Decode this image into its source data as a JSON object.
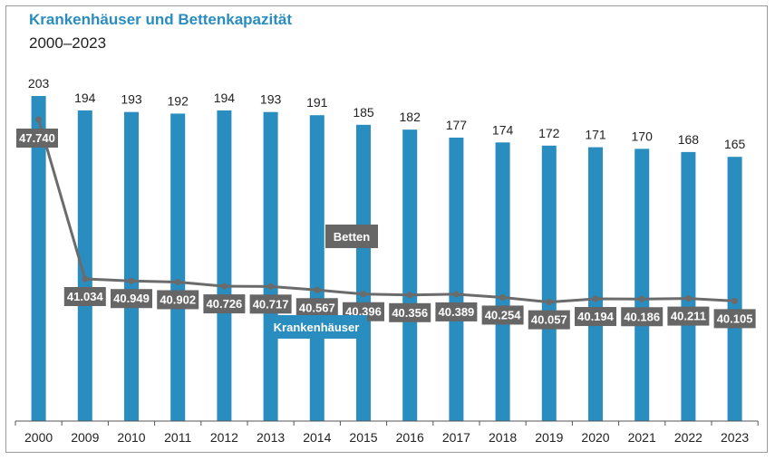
{
  "title": "Krankenhäuser und Bettenkapazität",
  "subtitle": "2000–2023",
  "colors": {
    "bars": "#2a8dc0",
    "line": "#6b6b6b",
    "label_box": "#666666",
    "title": "#2a8dc0"
  },
  "chart_data": {
    "type": "bar",
    "categories": [
      "2000",
      "2009",
      "2010",
      "2011",
      "2012",
      "2013",
      "2014",
      "2015",
      "2016",
      "2017",
      "2018",
      "2019",
      "2020",
      "2021",
      "2022",
      "2023"
    ],
    "series": [
      {
        "name": "Krankenhäuser",
        "type": "bar",
        "values": [
          203,
          194,
          193,
          192,
          194,
          193,
          191,
          185,
          182,
          177,
          174,
          172,
          171,
          170,
          168,
          165
        ],
        "labels": [
          "203",
          "194",
          "193",
          "192",
          "194",
          "193",
          "191",
          "185",
          "182",
          "177",
          "174",
          "172",
          "171",
          "170",
          "168",
          "165"
        ]
      },
      {
        "name": "Betten",
        "type": "line",
        "values": [
          47740,
          41034,
          40949,
          40902,
          40726,
          40717,
          40567,
          40396,
          40356,
          40389,
          40254,
          40057,
          40194,
          40186,
          40211,
          40105
        ],
        "labels": [
          "47.740",
          "41.034",
          "40.949",
          "40.902",
          "40.726",
          "40.717",
          "40.567",
          "40.396",
          "40.356",
          "40.389",
          "40.254",
          "40.057",
          "40.194",
          "40.186",
          "40.211",
          "40.105"
        ]
      }
    ],
    "annotations": [
      "Betten",
      "Krankenhäuser"
    ],
    "grid": false,
    "legend": "none"
  }
}
